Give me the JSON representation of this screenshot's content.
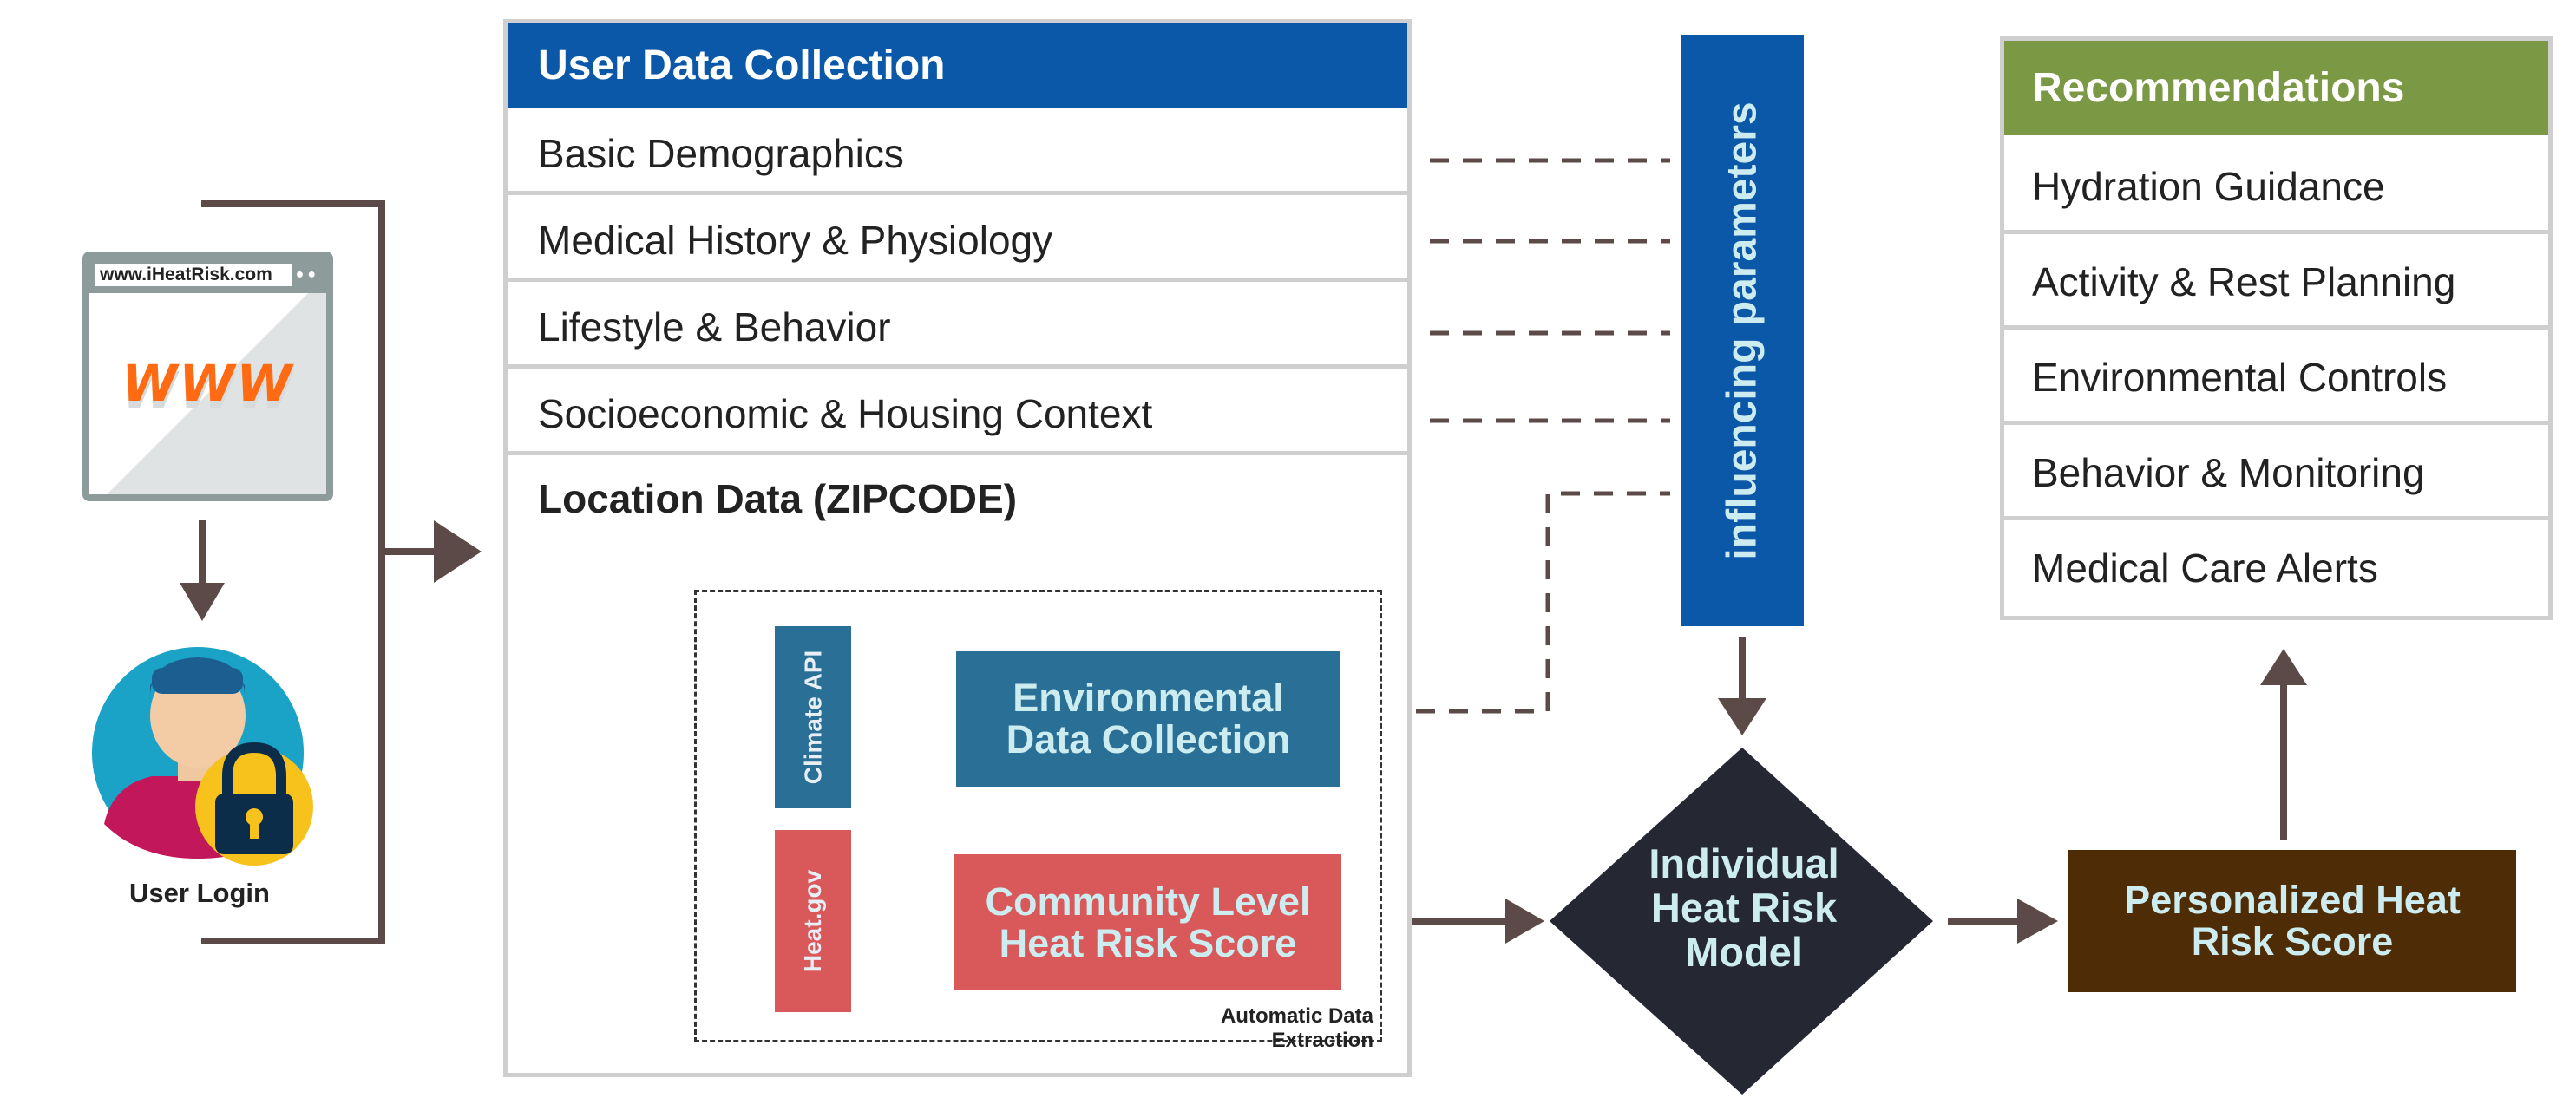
{
  "browser": {
    "url": "www.iHeatRisk.com",
    "www_text": "WWW"
  },
  "user_login": {
    "label": "User Login"
  },
  "user_data_collection": {
    "title": "User Data Collection",
    "rows": [
      "Basic Demographics",
      "Medical History & Physiology",
      "Lifestyle & Behavior",
      "Socioeconomic & Housing Context"
    ],
    "location_label": "Location Data (ZIPCODE)"
  },
  "extraction": {
    "label": "Automatic Data Extraction",
    "climate_api": "Climate API",
    "heat_gov": "Heat.gov",
    "environmental_data": "Environmental Data Collection",
    "community_score": "Community Level Heat Risk Score"
  },
  "influencing": "influencing parameters",
  "model": "Individual Heat Risk Model",
  "personalized_score": "Personalized Heat Risk Score",
  "recommendations": {
    "title": "Recommendations",
    "items": [
      "Hydration Guidance",
      "Activity & Rest Planning",
      "Environmental Controls",
      "Behavior & Monitoring",
      "Medical Care Alerts"
    ]
  },
  "colors": {
    "blue": "#0b57a8",
    "teal": "#2a6f95",
    "red": "#d9585a",
    "green": "#7b9844",
    "brown": "#4e2c06",
    "navy": "#252833",
    "arrow": "#5b4a47"
  }
}
